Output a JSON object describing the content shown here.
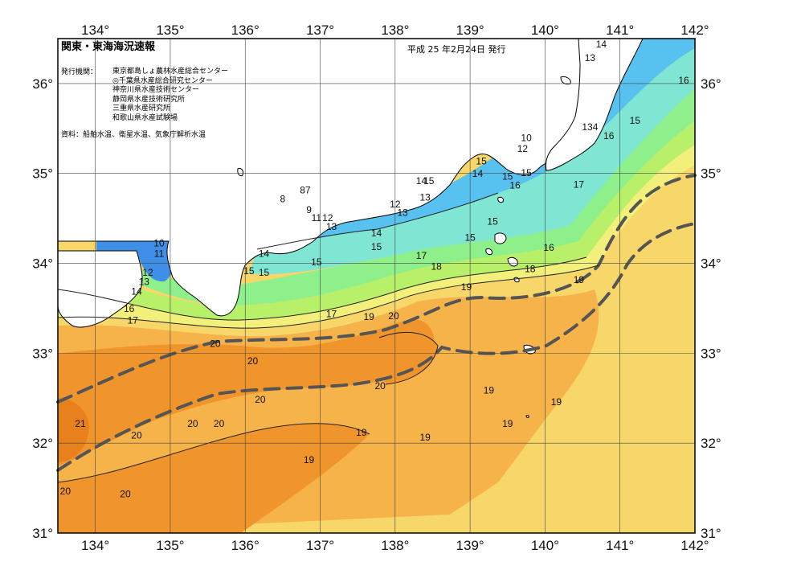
{
  "title": "関東・東海海況速報",
  "date": "平成 25 年2月24日 発行",
  "issuers_label": "発行機関：",
  "issuers": [
    "東京都島しょ農林水産総合センター",
    "◎千葉県水産総合研究センター",
    "神奈川県水産技術センター",
    "静岡県水産技術研究所",
    "三重県水産研究所",
    "和歌山県水産試験場"
  ],
  "source": "資料：船舶水温、衛星水温、気象庁解析水温",
  "axes": {
    "lon_ticks": [
      "134°",
      "135°",
      "136°",
      "137°",
      "138°",
      "139°",
      "140°",
      "141°",
      "142°"
    ],
    "lat_ticks": [
      "36°",
      "35°",
      "34°",
      "33°",
      "32°",
      "31°"
    ]
  },
  "colors": {
    "land": "#ffffff",
    "t8": "#2f4fd6",
    "t10": "#3f8ee8",
    "t12": "#57c2f0",
    "t14": "#7ee6d2",
    "t15": "#8ef08a",
    "t16": "#b8f06a",
    "t17": "#f2f07a",
    "t18": "#f7d66a",
    "t19": "#f6b34a",
    "t20": "#f0952c",
    "t21": "#e8801c",
    "kuroshio": "#555555"
  },
  "contour_labels": [
    {
      "text": "14",
      "lon": 140.75,
      "lat": 36.4
    },
    {
      "text": "13",
      "lon": 140.6,
      "lat": 36.25
    },
    {
      "text": "16",
      "lon": 141.85,
      "lat": 36.0
    },
    {
      "text": "15",
      "lon": 141.2,
      "lat": 35.55
    },
    {
      "text": "134",
      "lon": 140.6,
      "lat": 35.48
    },
    {
      "text": "16",
      "lon": 140.85,
      "lat": 35.38
    },
    {
      "text": "10",
      "lon": 139.75,
      "lat": 35.36
    },
    {
      "text": "12",
      "lon": 139.7,
      "lat": 35.24
    },
    {
      "text": "15",
      "lon": 139.15,
      "lat": 35.1
    },
    {
      "text": "14",
      "lon": 139.1,
      "lat": 34.96
    },
    {
      "text": "15",
      "lon": 139.5,
      "lat": 34.93
    },
    {
      "text": "15",
      "lon": 139.75,
      "lat": 34.97
    },
    {
      "text": "16",
      "lon": 139.6,
      "lat": 34.83
    },
    {
      "text": "17",
      "lon": 140.45,
      "lat": 34.84
    },
    {
      "text": "14",
      "lon": 138.35,
      "lat": 34.88
    },
    {
      "text": "15",
      "lon": 138.45,
      "lat": 34.88
    },
    {
      "text": "13",
      "lon": 138.4,
      "lat": 34.7
    },
    {
      "text": "12",
      "lon": 138.0,
      "lat": 34.62
    },
    {
      "text": "13",
      "lon": 138.1,
      "lat": 34.53
    },
    {
      "text": "15",
      "lon": 139.3,
      "lat": 34.43
    },
    {
      "text": "8",
      "lon": 136.5,
      "lat": 34.68
    },
    {
      "text": "87",
      "lon": 136.8,
      "lat": 34.78
    },
    {
      "text": "9",
      "lon": 136.85,
      "lat": 34.56
    },
    {
      "text": "11",
      "lon": 136.95,
      "lat": 34.47
    },
    {
      "text": "12",
      "lon": 137.1,
      "lat": 34.47
    },
    {
      "text": "13",
      "lon": 137.15,
      "lat": 34.37
    },
    {
      "text": "14",
      "lon": 137.75,
      "lat": 34.3
    },
    {
      "text": "15",
      "lon": 137.75,
      "lat": 34.15
    },
    {
      "text": "15",
      "lon": 139.0,
      "lat": 34.25
    },
    {
      "text": "16",
      "lon": 140.05,
      "lat": 34.14
    },
    {
      "text": "17",
      "lon": 138.35,
      "lat": 34.05
    },
    {
      "text": "18",
      "lon": 138.55,
      "lat": 33.93
    },
    {
      "text": "18",
      "lon": 139.8,
      "lat": 33.9
    },
    {
      "text": "19",
      "lon": 140.45,
      "lat": 33.78
    },
    {
      "text": "19",
      "lon": 138.95,
      "lat": 33.7
    },
    {
      "text": "14",
      "lon": 136.25,
      "lat": 34.07
    },
    {
      "text": "15",
      "lon": 136.95,
      "lat": 33.98
    },
    {
      "text": "15",
      "lon": 136.05,
      "lat": 33.88
    },
    {
      "text": "15",
      "lon": 136.25,
      "lat": 33.86
    },
    {
      "text": "10",
      "lon": 134.85,
      "lat": 34.19
    },
    {
      "text": "11",
      "lon": 134.85,
      "lat": 34.07
    },
    {
      "text": "12",
      "lon": 134.7,
      "lat": 33.86
    },
    {
      "text": "13",
      "lon": 134.65,
      "lat": 33.76
    },
    {
      "text": "14",
      "lon": 134.55,
      "lat": 33.65
    },
    {
      "text": "16",
      "lon": 134.45,
      "lat": 33.46
    },
    {
      "text": "17",
      "lon": 134.5,
      "lat": 33.33
    },
    {
      "text": "17",
      "lon": 137.15,
      "lat": 33.4
    },
    {
      "text": "19",
      "lon": 137.65,
      "lat": 33.37
    },
    {
      "text": "20",
      "lon": 137.98,
      "lat": 33.38
    },
    {
      "text": "20",
      "lon": 135.6,
      "lat": 33.07
    },
    {
      "text": "20",
      "lon": 136.1,
      "lat": 32.88
    },
    {
      "text": "20",
      "lon": 137.8,
      "lat": 32.6
    },
    {
      "text": "20",
      "lon": 136.2,
      "lat": 32.45
    },
    {
      "text": "19",
      "lon": 139.25,
      "lat": 32.55
    },
    {
      "text": "19",
      "lon": 140.15,
      "lat": 32.42
    },
    {
      "text": "21",
      "lon": 133.8,
      "lat": 32.18
    },
    {
      "text": "20",
      "lon": 135.3,
      "lat": 32.18
    },
    {
      "text": "20",
      "lon": 135.65,
      "lat": 32.18
    },
    {
      "text": "20",
      "lon": 134.55,
      "lat": 32.05
    },
    {
      "text": "19",
      "lon": 137.55,
      "lat": 32.08
    },
    {
      "text": "19",
      "lon": 138.4,
      "lat": 32.03
    },
    {
      "text": "19",
      "lon": 139.5,
      "lat": 32.18
    },
    {
      "text": "19",
      "lon": 136.85,
      "lat": 31.78
    },
    {
      "text": "20",
      "lon": 133.6,
      "lat": 31.43
    },
    {
      "text": "20",
      "lon": 134.4,
      "lat": 31.4
    }
  ]
}
